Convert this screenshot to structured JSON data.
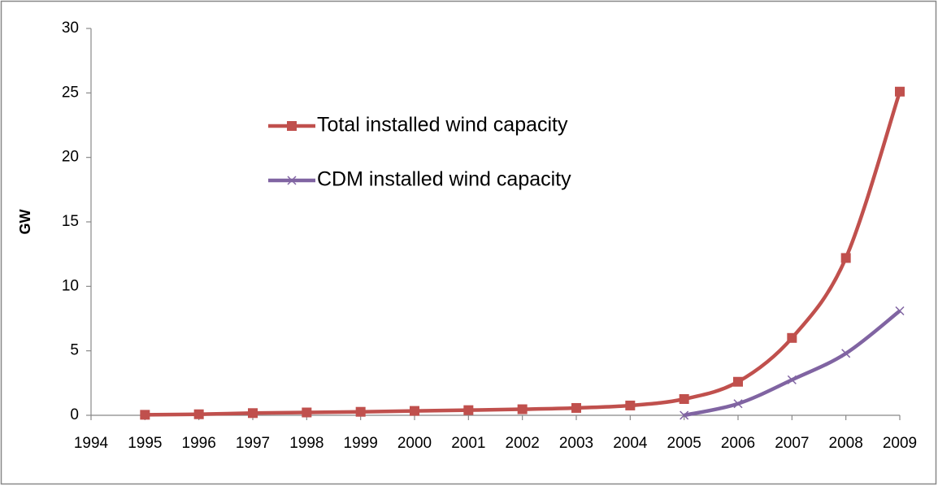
{
  "chart_data": {
    "type": "line",
    "y_label": "GW",
    "x": [
      1995,
      1996,
      1997,
      1998,
      1999,
      2000,
      2001,
      2002,
      2003,
      2004,
      2005,
      2006,
      2007,
      2008,
      2009
    ],
    "xlim": [
      1994,
      2009
    ],
    "xticks": [
      1994,
      1995,
      1996,
      1997,
      1998,
      1999,
      2000,
      2001,
      2002,
      2003,
      2004,
      2005,
      2006,
      2007,
      2008,
      2009
    ],
    "ylim": [
      0,
      30
    ],
    "yticks": [
      0,
      5,
      10,
      15,
      20,
      25,
      30
    ],
    "grid": false,
    "smooth": true,
    "legend": "upper left",
    "series": [
      {
        "name": "Total installed wind capacity",
        "color": "#c0504d",
        "marker": "square",
        "values": [
          0.04,
          0.08,
          0.17,
          0.22,
          0.27,
          0.34,
          0.4,
          0.47,
          0.57,
          0.76,
          1.26,
          2.6,
          6.0,
          12.2,
          25.1
        ]
      },
      {
        "name": "CDM installed wind capacity",
        "color": "#8064a2",
        "marker": "x",
        "values": [
          null,
          null,
          null,
          null,
          null,
          null,
          null,
          null,
          null,
          null,
          0,
          0.9,
          2.75,
          4.8,
          8.1
        ]
      }
    ]
  }
}
